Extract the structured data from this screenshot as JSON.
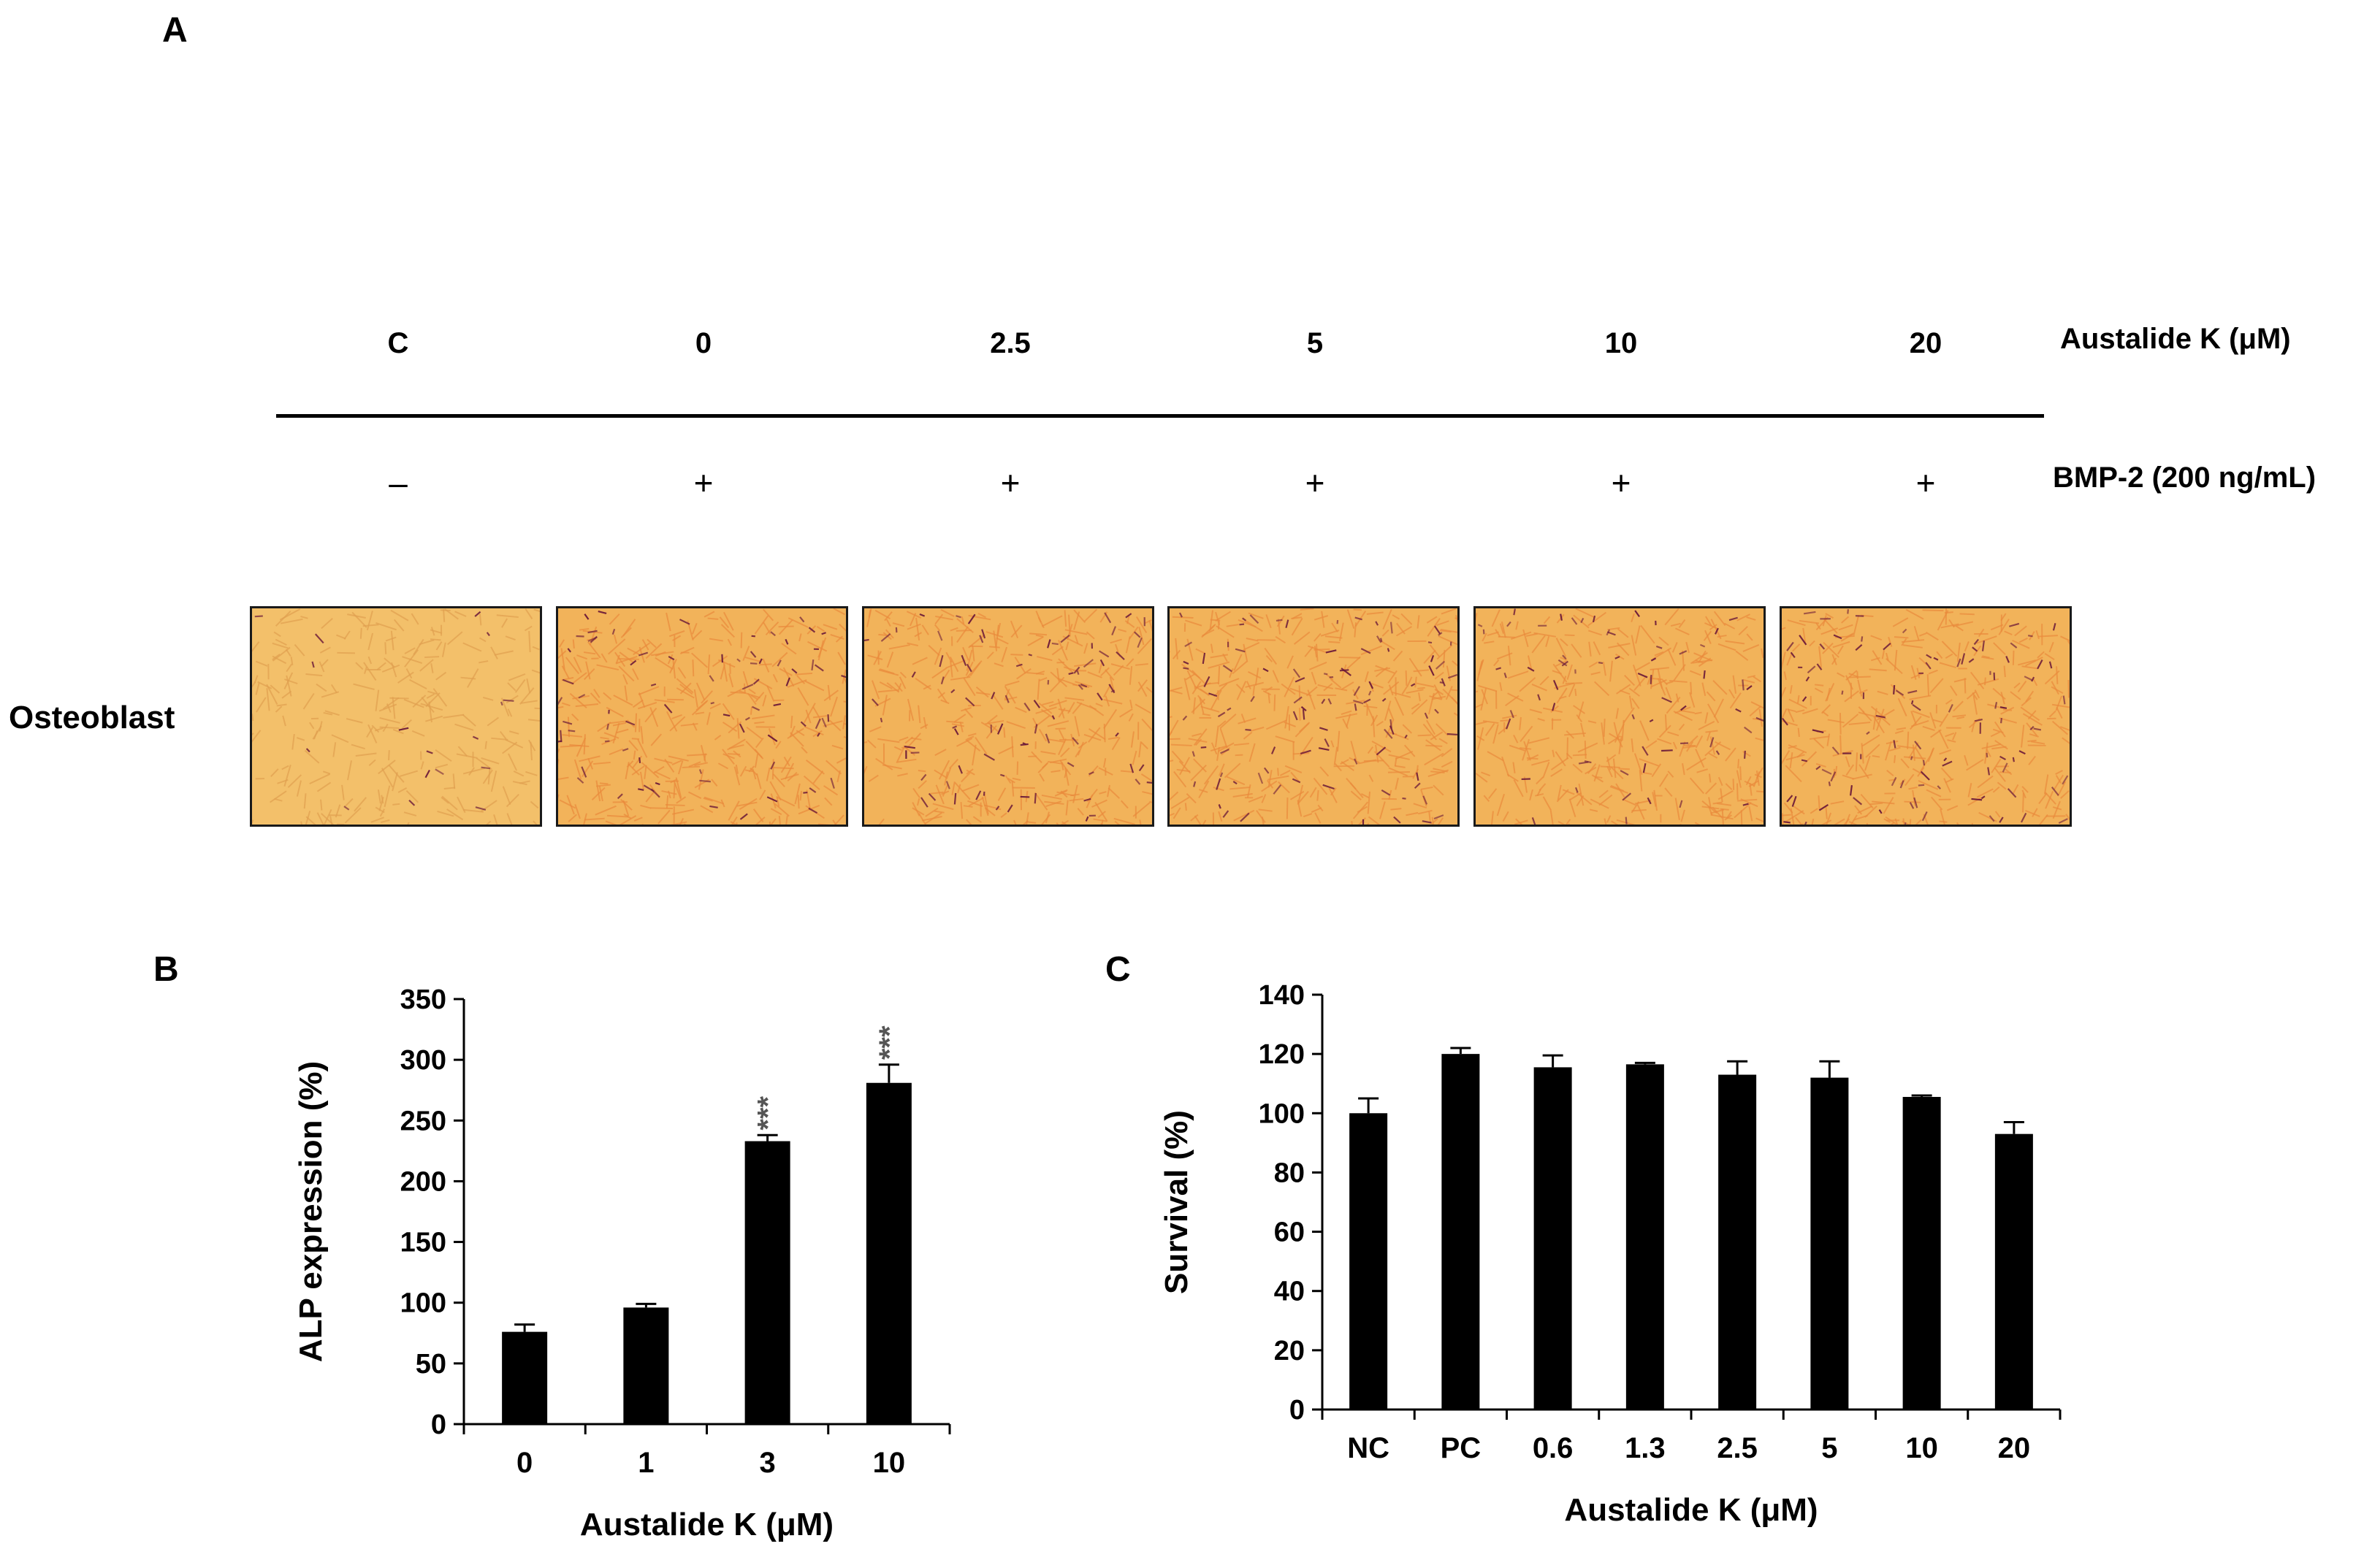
{
  "panel_a": {
    "letter": "A",
    "treatment_label": "Austalide K (μM)",
    "bmp_label": "BMP-2 (200 ng/mL)",
    "row_label": "Osteoblast",
    "columns": [
      {
        "conc": "C",
        "bmp": "–",
        "stain": 0.12
      },
      {
        "conc": "0",
        "bmp": "+",
        "stain": 0.55
      },
      {
        "conc": "2.5",
        "bmp": "+",
        "stain": 0.6
      },
      {
        "conc": "5",
        "bmp": "+",
        "stain": 0.7
      },
      {
        "conc": "10",
        "bmp": "+",
        "stain": 0.45
      },
      {
        "conc": "20",
        "bmp": "+",
        "stain": 0.75
      }
    ],
    "colors": {
      "background": "#f2b35a",
      "cell": "#e98a3c",
      "stain": "#6a1838"
    }
  },
  "chart_data": [
    {
      "panel": "B",
      "type": "bar",
      "title": "",
      "xlabel": "Austalide K (μM)",
      "ylabel": "ALP expression (%)",
      "categories": [
        "0",
        "1",
        "3",
        "10"
      ],
      "values": [
        76,
        96,
        233,
        281
      ],
      "errors": [
        6,
        3,
        5,
        15
      ],
      "significance": [
        "",
        "",
        "***",
        "***"
      ],
      "ylim": [
        0,
        350
      ],
      "yticks": [
        0,
        50,
        100,
        150,
        200,
        250,
        300,
        350
      ],
      "bar_color": "#000000",
      "grid": false
    },
    {
      "panel": "C",
      "type": "bar",
      "title": "",
      "xlabel": "Austalide K (μM)",
      "ylabel": "Survival (%)",
      "categories": [
        "NC",
        "PC",
        "0.6",
        "1.3",
        "2.5",
        "5",
        "10",
        "20"
      ],
      "values": [
        100,
        120,
        115.5,
        116.5,
        113,
        112,
        105.5,
        93
      ],
      "errors": [
        5,
        2,
        4,
        0.5,
        4.5,
        5.5,
        0.5,
        4
      ],
      "significance": [
        "",
        "",
        "",
        "",
        "",
        "",
        "",
        ""
      ],
      "ylim": [
        0,
        140
      ],
      "yticks": [
        0,
        20,
        40,
        60,
        80,
        100,
        120,
        140
      ],
      "bar_color": "#000000",
      "grid": false
    }
  ]
}
